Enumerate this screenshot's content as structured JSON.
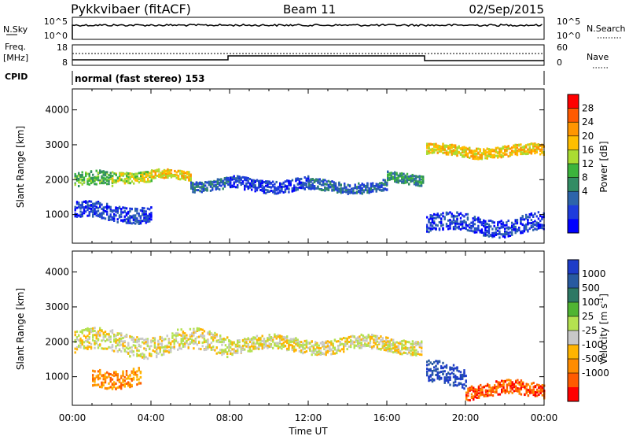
{
  "header": {
    "station": "Pykkvibaer (fitACF)",
    "beam": "Beam 11",
    "date": "02/Sep/2015"
  },
  "small_panels": {
    "nsky_label": "N.Sky",
    "nsearch_label": "N.Search",
    "freq_label_1": "Freq.",
    "freq_label_2": "[MHz]",
    "nave_label": "Nave",
    "cpid_label": "CPID",
    "cpid_text": "normal (fast stereo) 153",
    "noise_left_ticks": [
      "10^5",
      "10^0"
    ],
    "noise_right_ticks": [
      "10^5",
      "10^0"
    ],
    "freq_left_ticks": [
      "18",
      "8"
    ],
    "nave_right_ticks": [
      "60",
      "0"
    ]
  },
  "colorbars": {
    "power": {
      "label": "Power [dB]",
      "ticks": [
        "28",
        "24",
        "20",
        "16",
        "12",
        "8",
        "4"
      ],
      "colors": [
        "#ff0000",
        "#ff5a00",
        "#ff9600",
        "#ffbe00",
        "#aadc32",
        "#3cb43c",
        "#328c64",
        "#2d64aa",
        "#1e3cdc",
        "#0000ff"
      ]
    },
    "velocity": {
      "label": "Velocity [m s",
      "label_sup": "-1",
      "label_end": "]",
      "ticks": [
        "1000",
        "500",
        "100",
        "25",
        "-25",
        "-100",
        "-500",
        "-1000"
      ],
      "colors": [
        "#1e3cc8",
        "#285aa0",
        "#2d7864",
        "#50b432",
        "#b4e150",
        "#c8c8c8",
        "#ffb400",
        "#ff8c00",
        "#ff5a00",
        "#ff0000"
      ]
    }
  },
  "chart_data": [
    {
      "type": "heatmap",
      "title": "",
      "xlabel": "Time UT",
      "ylabel": "Slant Range [km]",
      "xlim": [
        "00:00",
        "24:00"
      ],
      "ylim": [
        180,
        4600
      ],
      "x_ticks": [
        "00:00",
        "04:00",
        "08:00",
        "12:00",
        "16:00",
        "20:00",
        "00:00"
      ],
      "y_ticks": [
        1000,
        2000,
        3000,
        4000
      ],
      "parameter": "Power",
      "bands": [
        {
          "time_start": 0.1,
          "time_end": 2.0,
          "range": 1950,
          "width": 400,
          "level": 5
        },
        {
          "time_start": 2.0,
          "time_end": 4.0,
          "range": 2100,
          "width": 300,
          "level": 4
        },
        {
          "time_start": 4.0,
          "time_end": 6.0,
          "range": 2100,
          "width": 250,
          "level": 3
        },
        {
          "time_start": 6.0,
          "time_end": 8.0,
          "range": 1850,
          "width": 300,
          "level": 7
        },
        {
          "time_start": 8.0,
          "time_end": 12.0,
          "range": 1850,
          "width": 350,
          "level": 8
        },
        {
          "time_start": 12.0,
          "time_end": 16.0,
          "range": 1800,
          "width": 300,
          "level": 7
        },
        {
          "time_start": 16.0,
          "time_end": 17.8,
          "range": 2000,
          "width": 300,
          "level": 6
        },
        {
          "time_start": 0.1,
          "time_end": 4.0,
          "range": 1050,
          "width": 450,
          "level": 8
        },
        {
          "time_start": 18.0,
          "time_end": 24.0,
          "range": 700,
          "width": 500,
          "level": 8
        },
        {
          "time_start": 18.0,
          "time_end": 24.0,
          "range": 2800,
          "width": 300,
          "level": 3
        }
      ]
    },
    {
      "type": "heatmap",
      "title": "",
      "xlabel": "Time UT",
      "ylabel": "Slant Range [km]",
      "xlim": [
        "00:00",
        "24:00"
      ],
      "ylim": [
        180,
        4600
      ],
      "x_ticks": [
        "00:00",
        "04:00",
        "08:00",
        "12:00",
        "16:00",
        "20:00",
        "00:00"
      ],
      "y_ticks": [
        1000,
        2000,
        3000,
        4000
      ],
      "parameter": "Velocity",
      "bands": [
        {
          "time_start": 0.1,
          "time_end": 8.0,
          "range": 1950,
          "width": 600,
          "level": 5
        },
        {
          "time_start": 8.0,
          "time_end": 17.8,
          "range": 1900,
          "width": 400,
          "level": 5
        },
        {
          "time_start": 1.0,
          "time_end": 3.5,
          "range": 1000,
          "width": 500,
          "level": 7
        },
        {
          "time_start": 18.0,
          "time_end": 20.0,
          "range": 1000,
          "width": 600,
          "level": 0
        },
        {
          "time_start": 20.0,
          "time_end": 24.0,
          "range": 600,
          "width": 400,
          "level": 8
        }
      ]
    }
  ]
}
